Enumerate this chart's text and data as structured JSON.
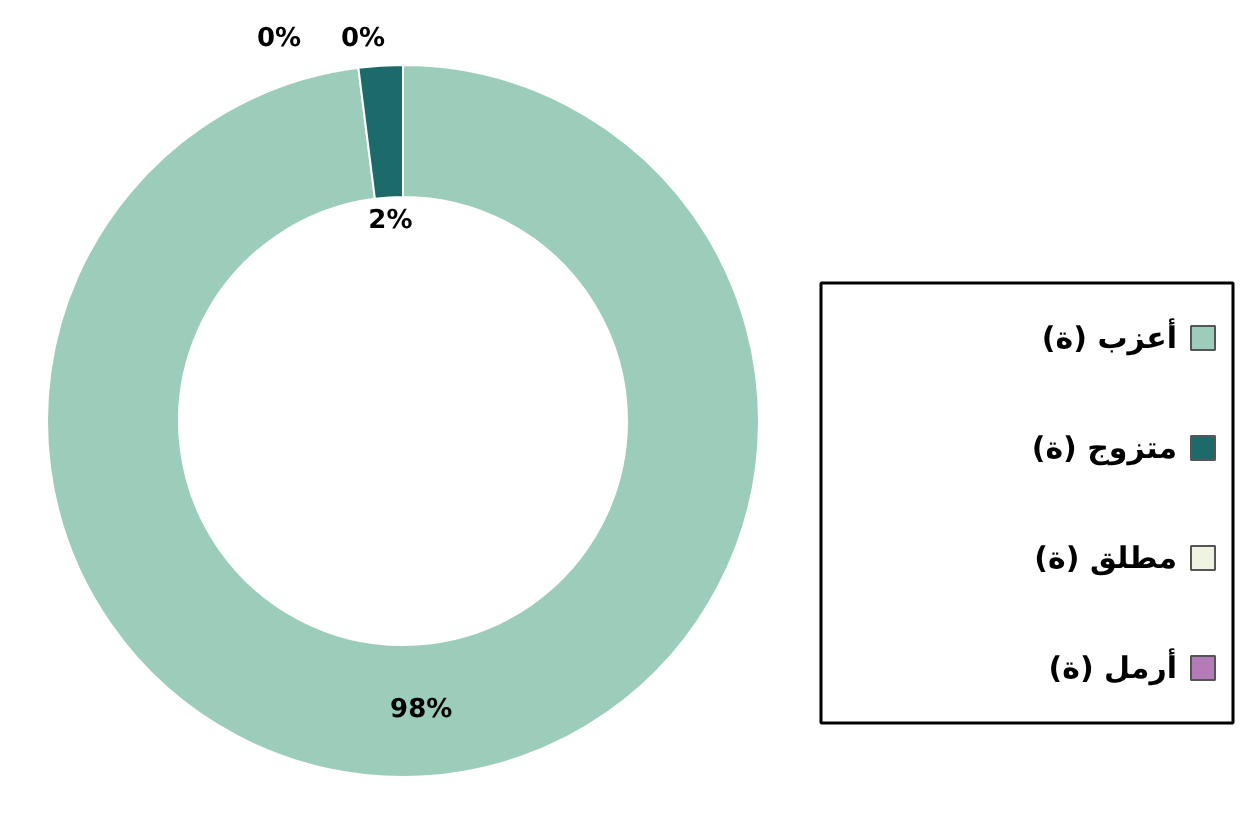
{
  "chart_data": {
    "type": "donut",
    "categories": [
      "أعزب (ة)",
      "متزوج (ة)",
      "مطلق (ة)",
      "أرمل (ة)"
    ],
    "values": [
      98,
      2,
      0,
      0
    ],
    "colors": [
      "#9ccdbb",
      "#1d6a6a",
      "#eef3e2",
      "#b57bb8"
    ],
    "value_labels": [
      "98%",
      "2%",
      "0%",
      "0%"
    ],
    "legend": "right"
  }
}
